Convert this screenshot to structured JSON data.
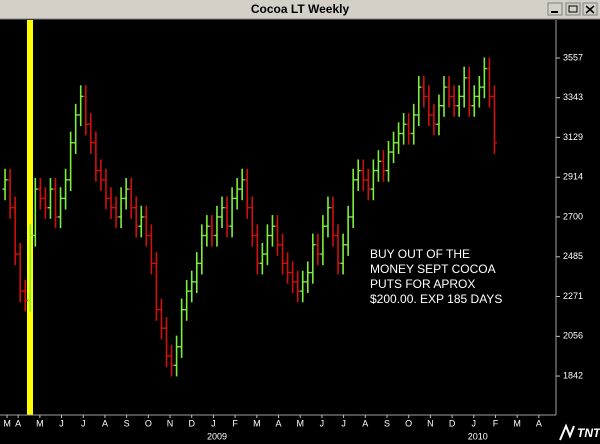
{
  "title": "Cocoa LT Weekly",
  "logo_text": "TNT",
  "chart_data": {
    "type": "ohlc",
    "up_color": "#7cf03c",
    "down_color": "#d01010",
    "annotation": [
      "BUY OUT OF THE",
      "MONEY SEPT COCOA",
      "PUTS FOR APROX",
      "$200.00. EXP 185 DAYS"
    ],
    "xlim": [
      -1,
      109
    ],
    "ylim": [
      1632,
      3762
    ],
    "yticks": [
      3557,
      3343,
      3129,
      2914,
      2700,
      2485,
      2271,
      2056,
      1842
    ],
    "xticks": [
      {
        "value": 0.4,
        "label": "M"
      },
      {
        "value": 2.6,
        "label": "A"
      },
      {
        "value": 6.9,
        "label": "M"
      },
      {
        "value": 11.2,
        "label": "J"
      },
      {
        "value": 15.5,
        "label": "J"
      },
      {
        "value": 19.8,
        "label": "A"
      },
      {
        "value": 24.1,
        "label": "S"
      },
      {
        "value": 28.4,
        "label": "O"
      },
      {
        "value": 32.7,
        "label": "N"
      },
      {
        "value": 37.0,
        "label": "D"
      },
      {
        "value": 41.3,
        "label": "J"
      },
      {
        "value": 45.6,
        "label": "F"
      },
      {
        "value": 49.9,
        "label": "M"
      },
      {
        "value": 54.2,
        "label": "A"
      },
      {
        "value": 58.5,
        "label": "M"
      },
      {
        "value": 62.8,
        "label": "J"
      },
      {
        "value": 67.1,
        "label": "J"
      },
      {
        "value": 71.4,
        "label": "A"
      },
      {
        "value": 75.7,
        "label": "S"
      },
      {
        "value": 80.0,
        "label": "O"
      },
      {
        "value": 84.3,
        "label": "N"
      },
      {
        "value": 88.6,
        "label": "D"
      },
      {
        "value": 92.9,
        "label": "J"
      },
      {
        "value": 97.2,
        "label": "F"
      },
      {
        "value": 101.5,
        "label": "M"
      },
      {
        "value": 105.8,
        "label": "A"
      }
    ],
    "year_ticks": [
      {
        "value": 42,
        "label": "2009"
      },
      {
        "value": 93.7,
        "label": "2010"
      }
    ],
    "open": [
      2850,
      2900,
      2750,
      2500,
      2300,
      2250,
      2600,
      2850,
      2800,
      2750,
      2850,
      2700,
      2800,
      2900,
      3100,
      3250,
      3350,
      3200,
      3100,
      2950,
      2900,
      2800,
      2750,
      2700,
      2800,
      2850,
      2750,
      2650,
      2700,
      2600,
      2450,
      2200,
      2100,
      1950,
      1900,
      2000,
      2200,
      2300,
      2350,
      2450,
      2600,
      2650,
      2600,
      2700,
      2750,
      2650,
      2800,
      2850,
      2900,
      2750,
      2600,
      2450,
      2500,
      2600,
      2650,
      2550,
      2450,
      2400,
      2350,
      2300,
      2350,
      2400,
      2550,
      2500,
      2650,
      2750,
      2600,
      2450,
      2550,
      2700,
      2900,
      2950,
      2900,
      2850,
      2950,
      3000,
      2950,
      3050,
      3100,
      3150,
      3200,
      3150,
      3250,
      3400,
      3350,
      3250,
      3200,
      3300,
      3400,
      3350,
      3300,
      3350,
      3450,
      3300,
      3350,
      3400,
      3500,
      3350
    ],
    "high": [
      2960,
      2960,
      2810,
      2560,
      2360,
      2660,
      2910,
      2910,
      2860,
      2910,
      2910,
      2860,
      2960,
      3160,
      3310,
      3410,
      3410,
      3260,
      3160,
      3010,
      2960,
      2860,
      2810,
      2860,
      2910,
      2910,
      2810,
      2760,
      2760,
      2660,
      2510,
      2260,
      2160,
      2010,
      2060,
      2260,
      2360,
      2410,
      2510,
      2660,
      2710,
      2710,
      2760,
      2810,
      2810,
      2860,
      2910,
      2960,
      2960,
      2810,
      2660,
      2560,
      2660,
      2710,
      2710,
      2610,
      2510,
      2460,
      2410,
      2410,
      2460,
      2610,
      2610,
      2710,
      2810,
      2810,
      2660,
      2610,
      2760,
      2960,
      3010,
      3010,
      2960,
      3010,
      3060,
      3060,
      3110,
      3160,
      3210,
      3260,
      3260,
      3310,
      3460,
      3460,
      3410,
      3310,
      3360,
      3460,
      3460,
      3410,
      3410,
      3510,
      3510,
      3410,
      3460,
      3560,
      3560,
      3410
    ],
    "low": [
      2790,
      2690,
      2440,
      2240,
      2190,
      2190,
      2540,
      2740,
      2690,
      2690,
      2640,
      2640,
      2740,
      2840,
      3040,
      3190,
      3140,
      3040,
      2890,
      2840,
      2740,
      2690,
      2640,
      2640,
      2740,
      2690,
      2590,
      2590,
      2540,
      2390,
      2140,
      2040,
      1890,
      1840,
      1840,
      1940,
      2140,
      2240,
      2290,
      2390,
      2540,
      2540,
      2540,
      2640,
      2590,
      2590,
      2740,
      2790,
      2690,
      2540,
      2390,
      2390,
      2440,
      2540,
      2490,
      2390,
      2340,
      2290,
      2240,
      2240,
      2290,
      2340,
      2440,
      2440,
      2590,
      2540,
      2390,
      2390,
      2490,
      2640,
      2840,
      2840,
      2790,
      2790,
      2890,
      2890,
      2890,
      2990,
      3040,
      3090,
      3090,
      3090,
      3190,
      3290,
      3190,
      3140,
      3140,
      3240,
      3290,
      3240,
      3240,
      3290,
      3240,
      3240,
      3290,
      3340,
      3290,
      3040
    ],
    "close": [
      2900,
      2750,
      2500,
      2300,
      2250,
      2600,
      2850,
      2800,
      2750,
      2850,
      2700,
      2800,
      2900,
      3100,
      3250,
      3350,
      3200,
      3100,
      2950,
      2900,
      2800,
      2750,
      2700,
      2800,
      2850,
      2750,
      2650,
      2700,
      2600,
      2450,
      2200,
      2100,
      1950,
      1900,
      2000,
      2200,
      2300,
      2350,
      2450,
      2600,
      2650,
      2600,
      2700,
      2750,
      2650,
      2800,
      2850,
      2900,
      2750,
      2600,
      2450,
      2500,
      2600,
      2650,
      2550,
      2450,
      2400,
      2350,
      2300,
      2350,
      2400,
      2550,
      2500,
      2650,
      2750,
      2600,
      2450,
      2550,
      2700,
      2900,
      2950,
      2900,
      2850,
      2950,
      3000,
      2950,
      3050,
      3100,
      3150,
      3200,
      3150,
      3250,
      3400,
      3350,
      3250,
      3200,
      3300,
      3400,
      3350,
      3300,
      3350,
      3450,
      3300,
      3350,
      3400,
      3500,
      3350,
      3100
    ]
  }
}
